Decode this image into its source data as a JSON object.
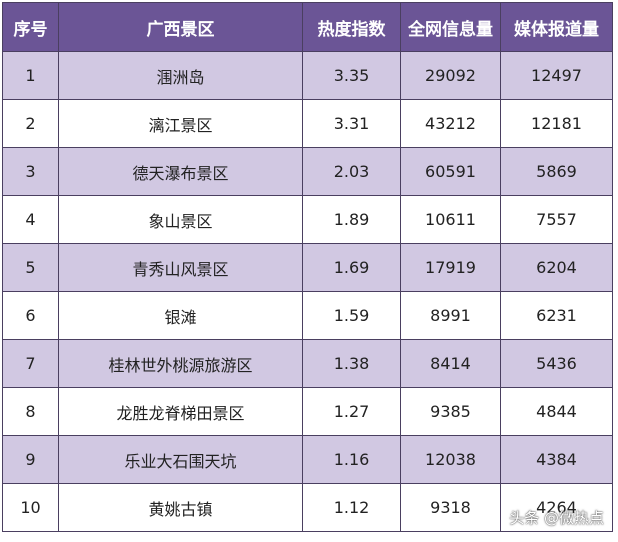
{
  "table": {
    "header": [
      "序号",
      "广西景区",
      "热度指数",
      "全网信息量",
      "媒体报道量"
    ],
    "rows": [
      [
        "1",
        "涠洲岛",
        "3.35",
        "29092",
        "12497"
      ],
      [
        "2",
        "漓江景区",
        "3.31",
        "43212",
        "12181"
      ],
      [
        "3",
        "德天瀑布景区",
        "2.03",
        "60591",
        "5869"
      ],
      [
        "4",
        "象山景区",
        "1.89",
        "10611",
        "7557"
      ],
      [
        "5",
        "青秀山风景区",
        "1.69",
        "17919",
        "6204"
      ],
      [
        "6",
        "银滩",
        "1.59",
        "8991",
        "6231"
      ],
      [
        "7",
        "桂林世外桃源旅游区",
        "1.38",
        "8414",
        "5436"
      ],
      [
        "8",
        "龙胜龙脊梯田景区",
        "1.27",
        "9385",
        "4844"
      ],
      [
        "9",
        "乐业大石围天坑",
        "1.16",
        "12038",
        "4384"
      ],
      [
        "10",
        "黄姚古镇",
        "1.12",
        "9318",
        "4264"
      ]
    ]
  },
  "watermark": "头条 @微热点"
}
